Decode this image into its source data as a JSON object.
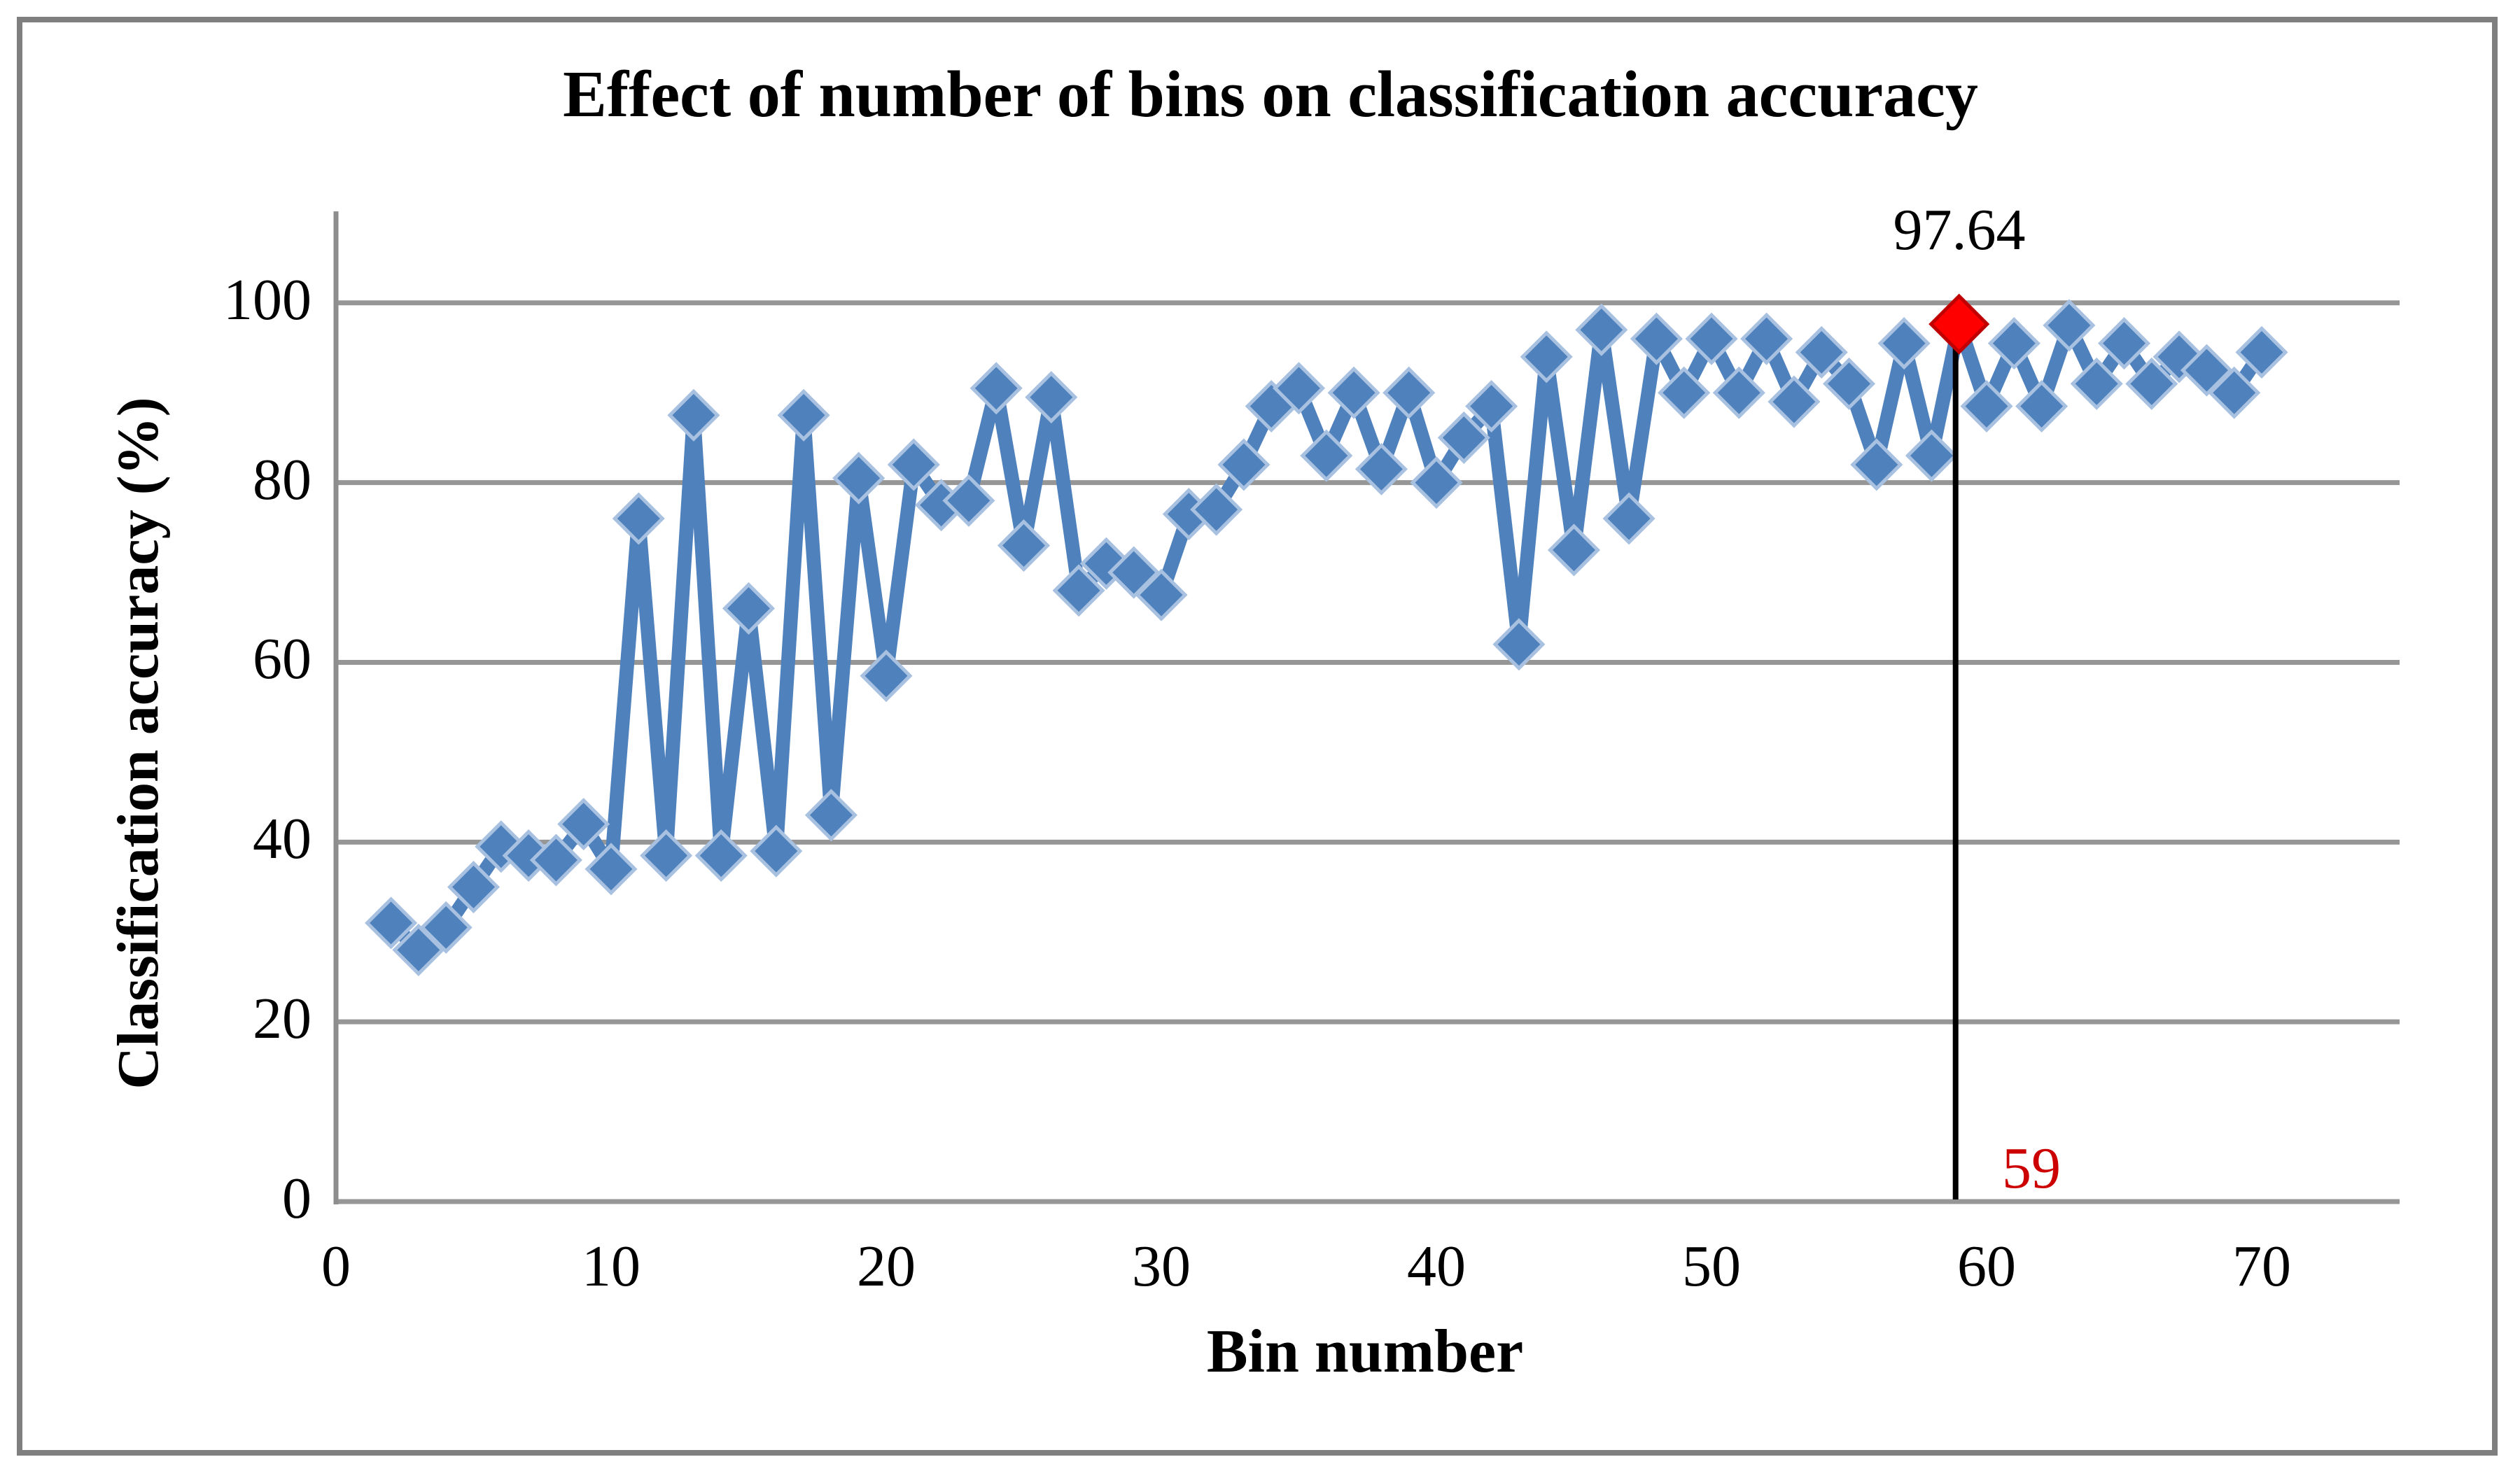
{
  "chart_data": {
    "type": "line",
    "title": "Effect of number of bins on classification accuracy",
    "xlabel": "Bin number",
    "ylabel": "Classification accuracy (%)",
    "series_name": "Classification accuracy",
    "x": [
      2,
      3,
      4,
      5,
      6,
      7,
      8,
      9,
      10,
      11,
      12,
      13,
      14,
      15,
      16,
      17,
      18,
      19,
      20,
      21,
      22,
      23,
      24,
      25,
      26,
      27,
      28,
      29,
      30,
      31,
      32,
      33,
      34,
      35,
      36,
      37,
      38,
      39,
      40,
      41,
      42,
      43,
      44,
      45,
      46,
      47,
      48,
      49,
      50,
      51,
      52,
      53,
      54,
      55,
      56,
      57,
      58,
      59,
      60,
      61,
      62,
      63,
      64,
      65,
      66,
      67,
      68,
      69,
      70
    ],
    "values": [
      31,
      28,
      30.5,
      35,
      39.5,
      38.5,
      38,
      42,
      37,
      76,
      38.5,
      87.5,
      38.5,
      66,
      39,
      87.5,
      43,
      80.5,
      58.5,
      82,
      77.5,
      78,
      90.5,
      73,
      89.5,
      68,
      71,
      70,
      67.5,
      76.5,
      77,
      82,
      88.5,
      90.5,
      83,
      90,
      81.5,
      90,
      80,
      85,
      88.5,
      62,
      94,
      72.5,
      97,
      76,
      96,
      90,
      96,
      90,
      96,
      89,
      94.5,
      91,
      82,
      95.5,
      83,
      97.64,
      88.5,
      95.5,
      88.5,
      97.5,
      91,
      95.5,
      91,
      94,
      92.5,
      90,
      94.5
    ],
    "x_ticks": [
      0,
      10,
      20,
      30,
      40,
      50,
      60,
      70
    ],
    "y_ticks": [
      0,
      20,
      40,
      60,
      80,
      100
    ],
    "xlim": [
      0,
      75
    ],
    "ylim": [
      0,
      110
    ],
    "grid": "horizontal-only",
    "legend": "none",
    "marker": "diamond",
    "line_color": "#4f81bd",
    "marker_edge_color": "#a9c1e0",
    "highlight": {
      "bin": 59,
      "value": 97.64,
      "value_label": "97.64",
      "bin_label": "59",
      "marker_color": "#ff0000",
      "marker_edge_color": "#c00000",
      "dropline_color": "#000000"
    }
  },
  "figure": {
    "background": "#ffffff",
    "border_color": "#7f7f7f",
    "grid_color": "#969696",
    "axis_color": "#8e8e8e"
  }
}
